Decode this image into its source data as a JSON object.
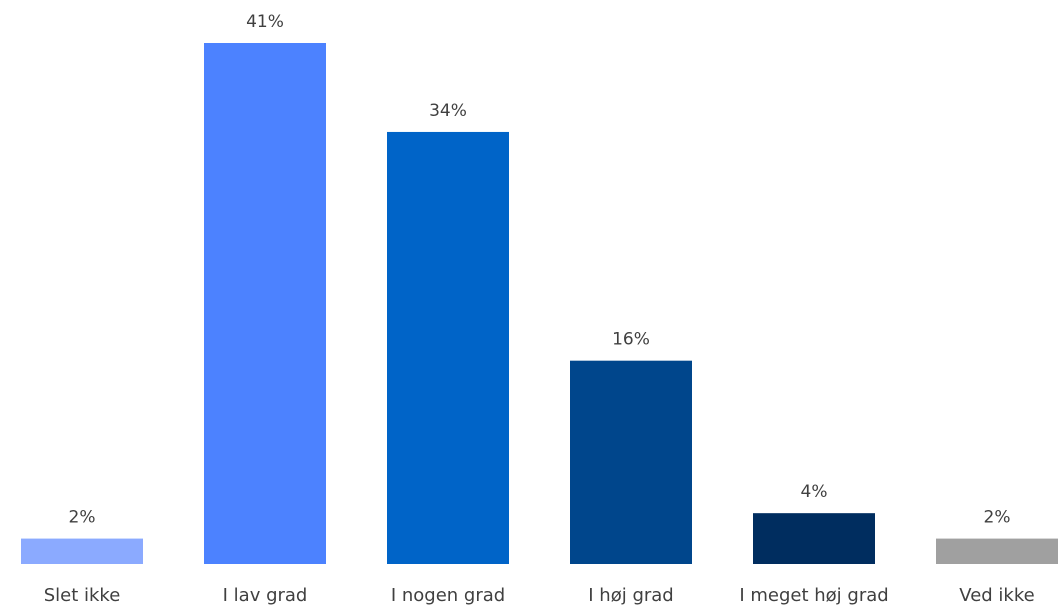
{
  "chart_data": {
    "type": "bar",
    "categories": [
      "Slet ikke",
      "I lav grad",
      "I nogen grad",
      "I høj grad",
      "I meget høj grad",
      "Ved ikke"
    ],
    "values": [
      2,
      41,
      34,
      16,
      4,
      2
    ],
    "value_labels": [
      "2%",
      "41%",
      "34%",
      "16%",
      "4%",
      "2%"
    ],
    "colors": [
      "#8BAAFF",
      "#4C82FF",
      "#0064C8",
      "#00468C",
      "#002D5F",
      "#A0A0A0"
    ],
    "ylim": [
      0,
      41
    ],
    "grid": false,
    "legend": "none"
  }
}
